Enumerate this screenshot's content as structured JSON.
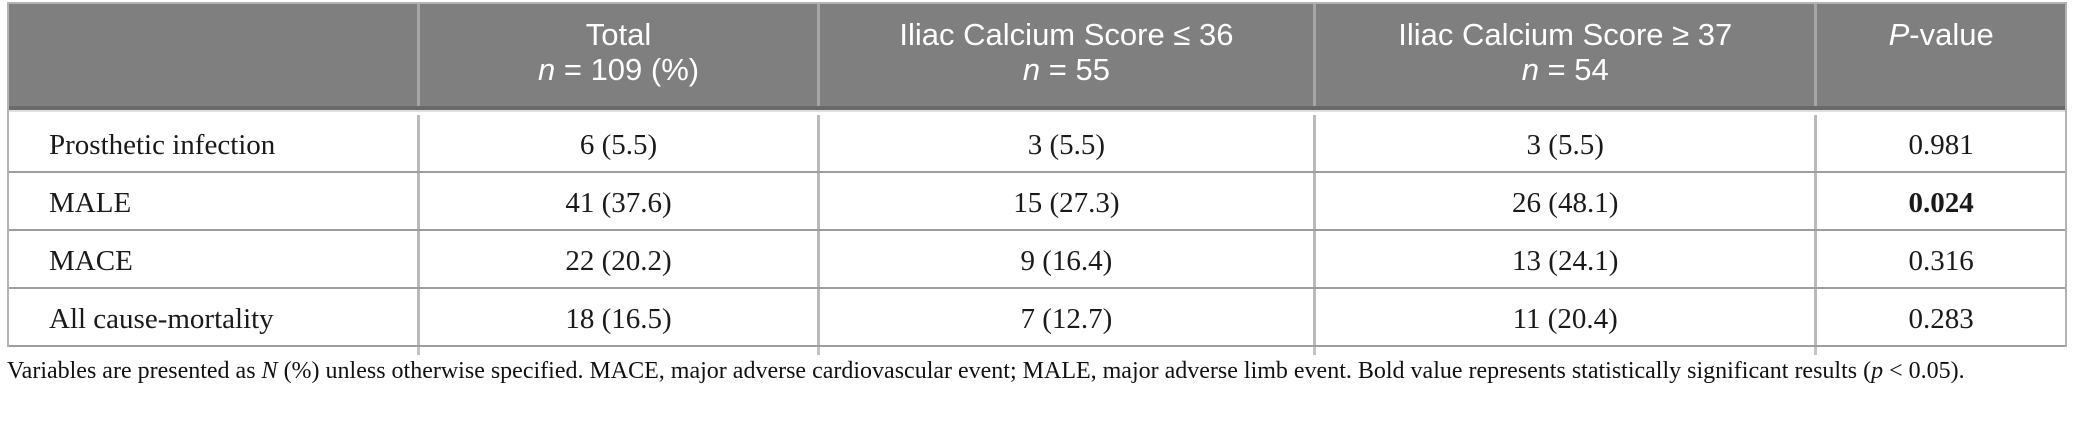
{
  "colors": {
    "header_bg": "#7f7f7f",
    "header_text": "#ffffff",
    "row_line": "#9e9e9e",
    "column_line": "#bababa",
    "body_text": "#1a1a1a"
  },
  "table": {
    "header": {
      "label_col": "",
      "total": {
        "line1": "Total",
        "line2": [
          {
            "t": "n",
            "i": true
          },
          {
            "t": " = 109 (%)"
          }
        ]
      },
      "low": {
        "line1": "Iliac Calcium Score ≤ 36",
        "line2": [
          {
            "t": "n",
            "i": true
          },
          {
            "t": " = 55"
          }
        ]
      },
      "high": {
        "line1": "Iliac Calcium Score ≥ 37",
        "line2": [
          {
            "t": "n",
            "i": true
          },
          {
            "t": " = 54"
          }
        ]
      },
      "pvalue": {
        "line1": [
          {
            "t": "P",
            "i": true
          },
          {
            "t": "-value"
          }
        ]
      }
    },
    "rows": [
      {
        "label": "Prosthetic infection",
        "total": "6 (5.5)",
        "low": "3 (5.5)",
        "high": "3 (5.5)",
        "p": "0.981",
        "p_bold": false
      },
      {
        "label": "MALE",
        "total": "41 (37.6)",
        "low": "15 (27.3)",
        "high": "26 (48.1)",
        "p": "0.024",
        "p_bold": true
      },
      {
        "label": "MACE",
        "total": "22 (20.2)",
        "low": "9 (16.4)",
        "high": "13 (24.1)",
        "p": "0.316",
        "p_bold": false
      },
      {
        "label": "All cause-mortality",
        "total": "18 (16.5)",
        "low": "7 (12.7)",
        "high": "11 (20.4)",
        "p": "0.283",
        "p_bold": false
      }
    ]
  },
  "footnote": {
    "segments": [
      {
        "t": "Variables are presented as "
      },
      {
        "t": "N",
        "i": true
      },
      {
        "t": " (%) unless otherwise specified. MACE, major adverse cardiovascular event; MALE, major adverse limb event. Bold value represents statistically significant results ("
      },
      {
        "t": "p",
        "i": true
      },
      {
        "t": " < 0.05)."
      }
    ]
  }
}
